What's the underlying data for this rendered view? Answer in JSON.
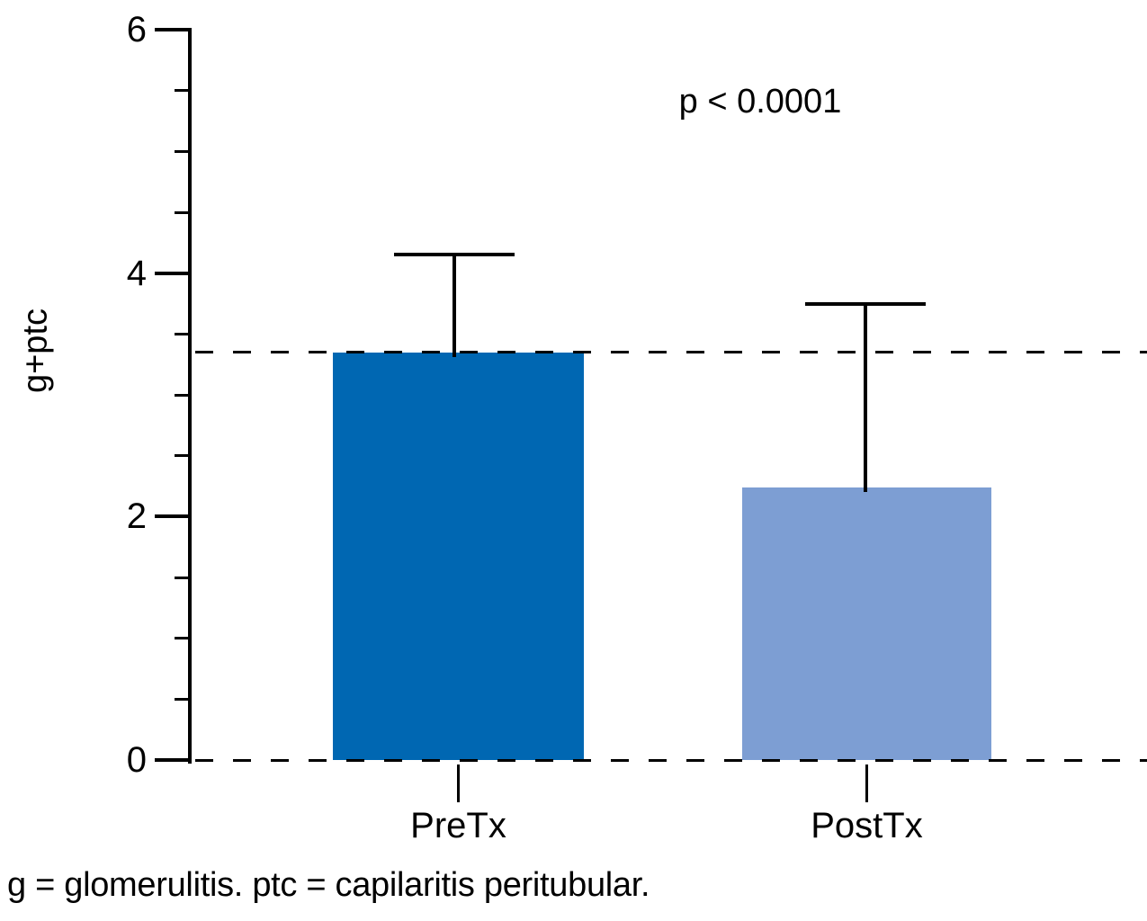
{
  "figure": {
    "footnote": "g = glomerulitis. ptc = capilaritis peritubular."
  },
  "chart_data": {
    "type": "bar",
    "title": "",
    "xlabel": "",
    "ylabel": "g+ptc",
    "categories": [
      "PreTx",
      "PostTx"
    ],
    "values": [
      3.35,
      2.24
    ],
    "error_upper_tops": [
      4.15,
      3.75
    ],
    "bar_colors": [
      "#0067b2",
      "#7d9ed3"
    ],
    "axis_color": "#000000",
    "ylim": [
      0,
      6
    ],
    "yticks": [
      0,
      2,
      4,
      6
    ],
    "y_minor_step": 0.5,
    "grid": false,
    "legend": null,
    "annotation": "p < 0.0001",
    "reference_lines": [
      {
        "y": 3.35,
        "style": "dashed",
        "color": "#000000"
      },
      {
        "y": 0,
        "style": "dashed",
        "color": "#000000"
      }
    ]
  }
}
